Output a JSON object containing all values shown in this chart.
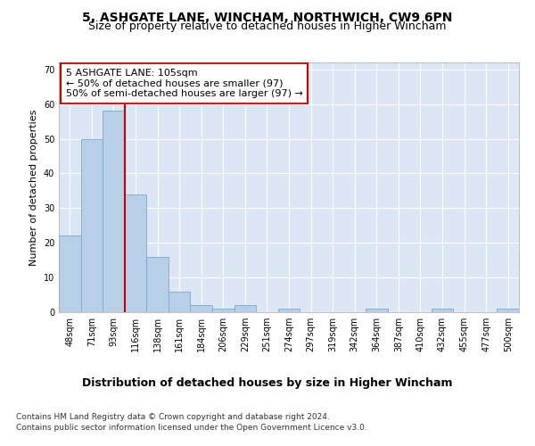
{
  "title1": "5, ASHGATE LANE, WINCHAM, NORTHWICH, CW9 6PN",
  "title2": "Size of property relative to detached houses in Higher Wincham",
  "xlabel": "Distribution of detached houses by size in Higher Wincham",
  "ylabel": "Number of detached properties",
  "categories": [
    "48sqm",
    "71sqm",
    "93sqm",
    "116sqm",
    "138sqm",
    "161sqm",
    "184sqm",
    "206sqm",
    "229sqm",
    "251sqm",
    "274sqm",
    "297sqm",
    "319sqm",
    "342sqm",
    "364sqm",
    "387sqm",
    "410sqm",
    "432sqm",
    "455sqm",
    "477sqm",
    "500sqm"
  ],
  "values": [
    22,
    50,
    58,
    34,
    16,
    6,
    2,
    1,
    2,
    0,
    1,
    0,
    0,
    0,
    1,
    0,
    0,
    1,
    0,
    0,
    1
  ],
  "bar_color": "#b8cfe8",
  "bar_edge_color": "#7aaad0",
  "vline_x": 2.5,
  "vline_color": "#cc0000",
  "annotation_text": "5 ASHGATE LANE: 105sqm\n← 50% of detached houses are smaller (97)\n50% of semi-detached houses are larger (97) →",
  "annotation_box_color": "#ffffff",
  "annotation_box_edge": "#cc0000",
  "ylim": [
    0,
    72
  ],
  "yticks": [
    0,
    10,
    20,
    30,
    40,
    50,
    60,
    70
  ],
  "background_color": "#dce6f5",
  "plot_background": "#dce6f5",
  "footer1": "Contains HM Land Registry data © Crown copyright and database right 2024.",
  "footer2": "Contains public sector information licensed under the Open Government Licence v3.0.",
  "title1_fontsize": 10,
  "title2_fontsize": 9,
  "xlabel_fontsize": 9,
  "ylabel_fontsize": 8,
  "tick_fontsize": 7,
  "annotation_fontsize": 8,
  "footer_fontsize": 6.5
}
